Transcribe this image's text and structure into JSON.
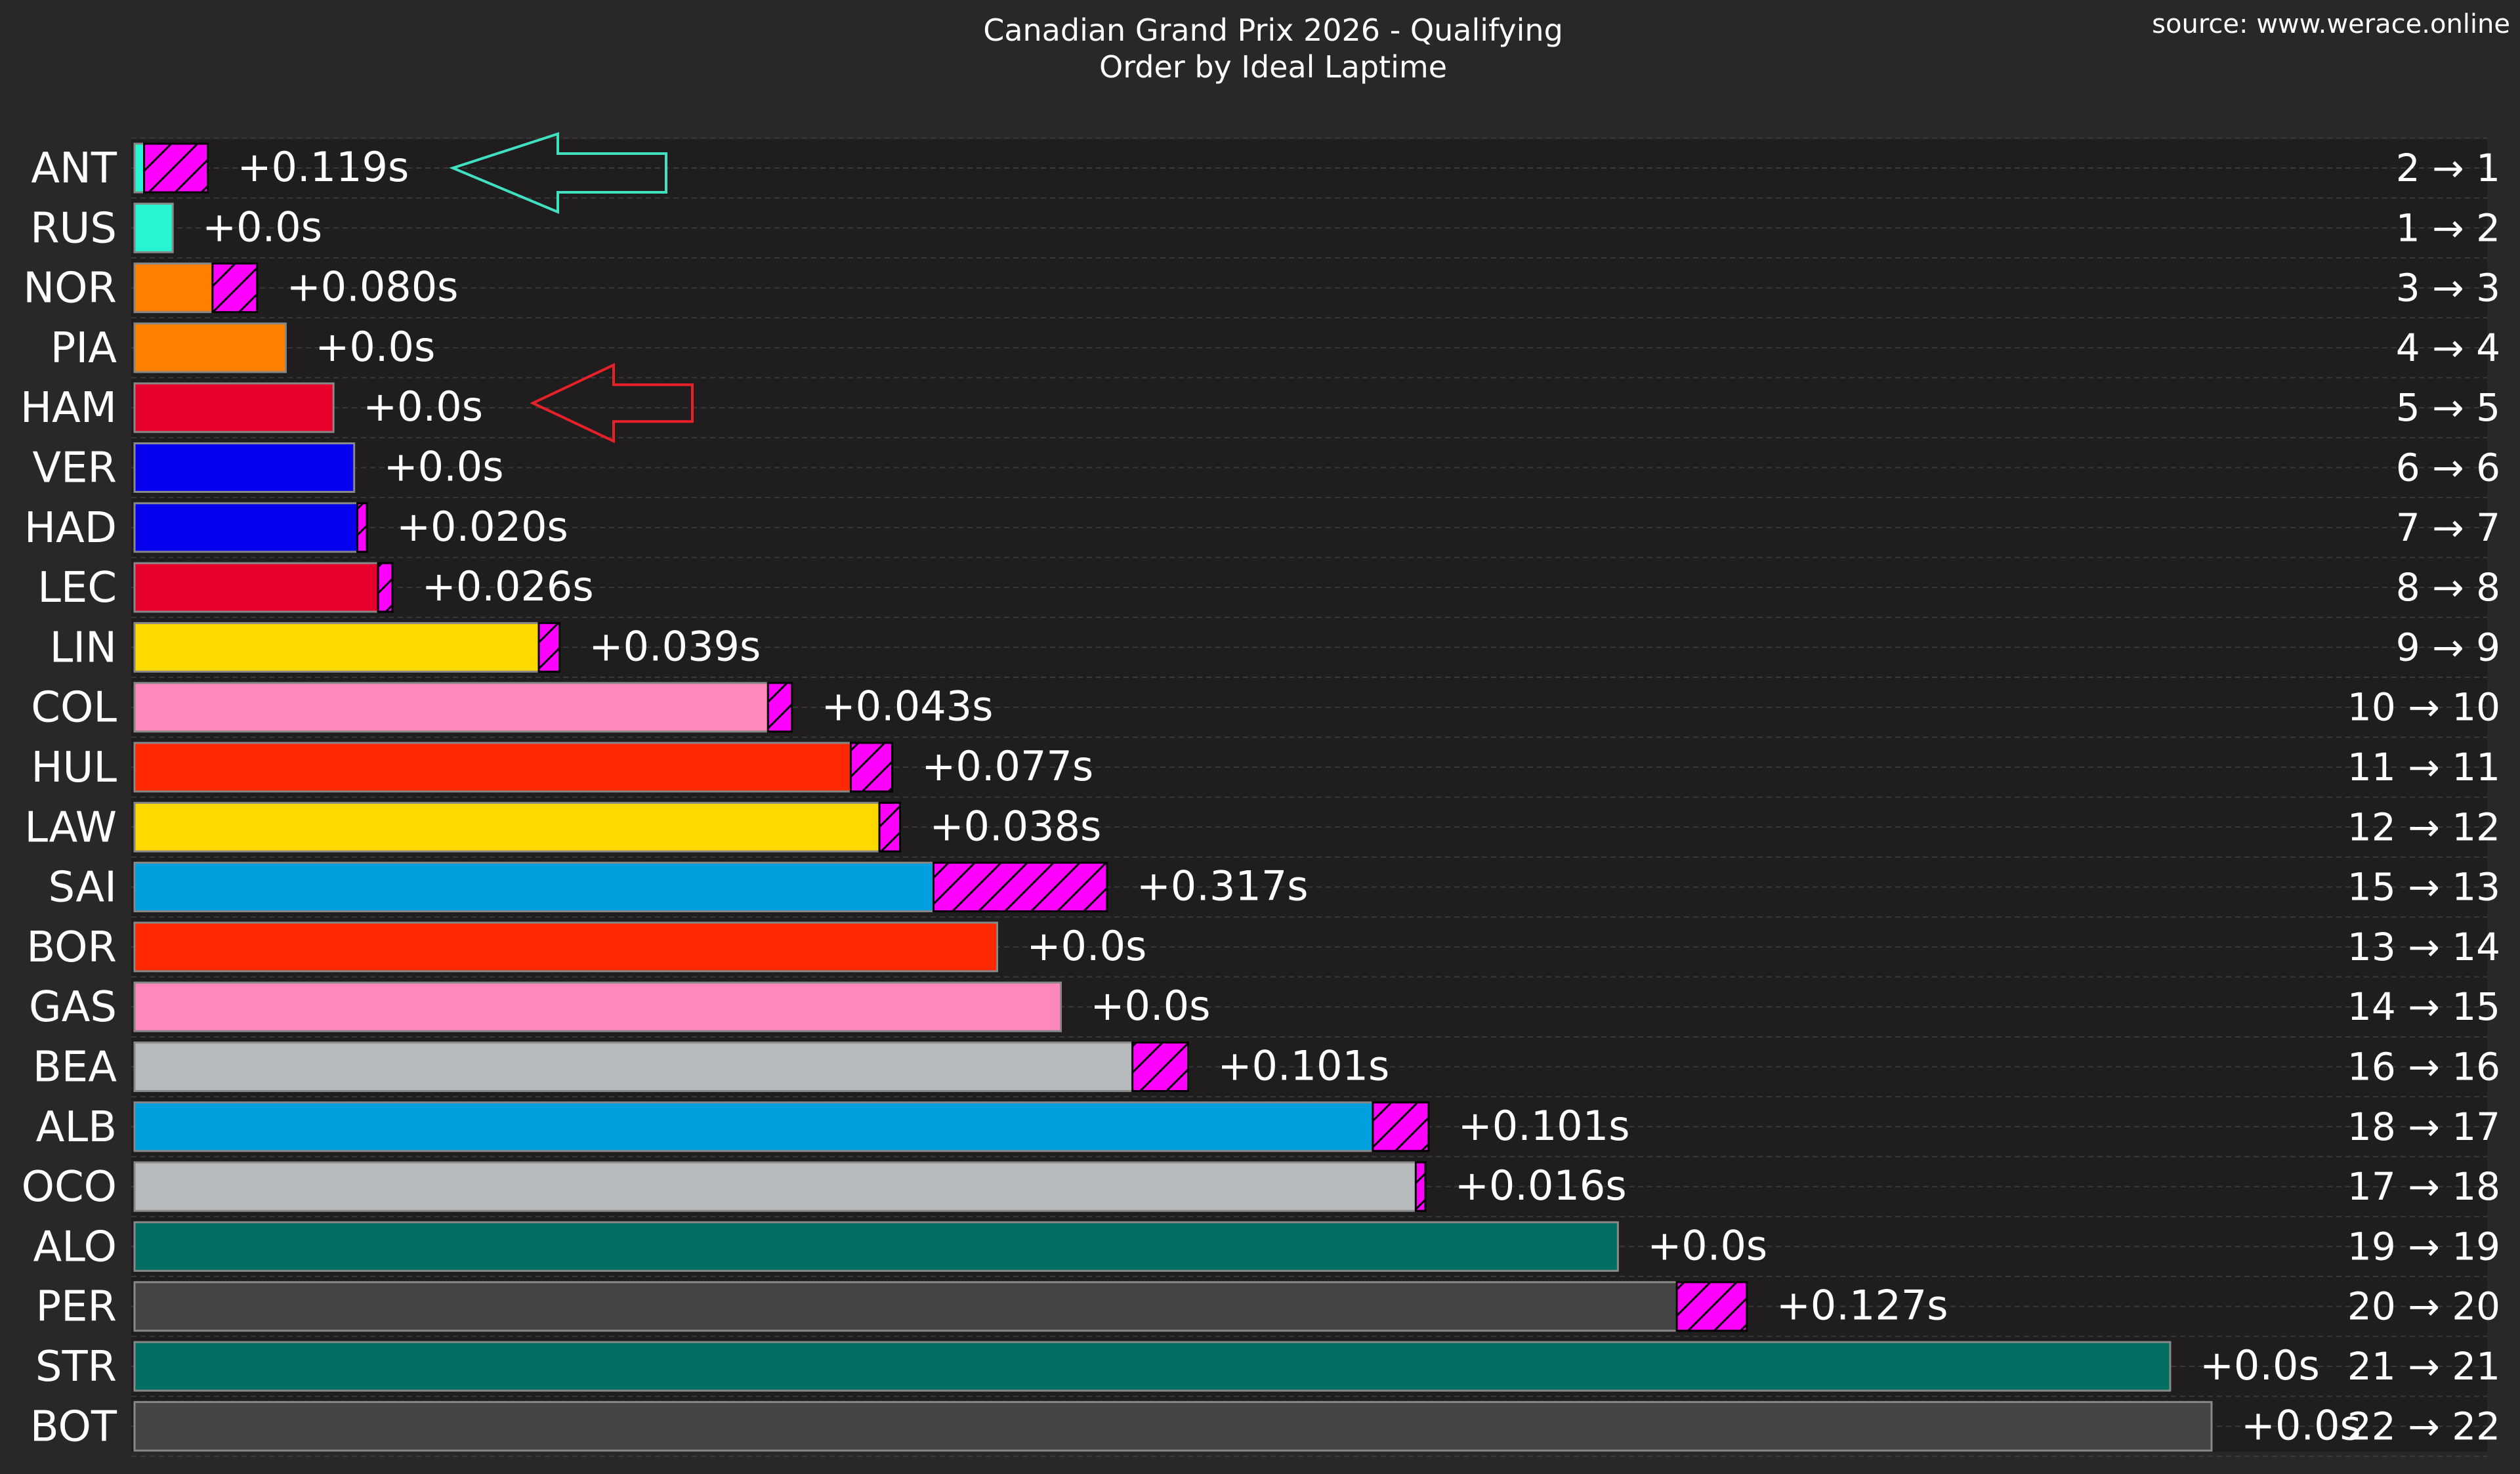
{
  "title": "Canadian Grand Prix 2026 - Qualifying",
  "subtitle": "Order by Ideal Laptime",
  "source": "source: www.werace.online",
  "colors": {
    "background": "#292727",
    "plot_background": "#1f1d1d",
    "gap_fill": "#ff00ff",
    "ant_arrow": "#40e0c0",
    "ham_arrow": "#e8202a"
  },
  "chart_data": {
    "type": "bar",
    "orientation": "horizontal",
    "title": "Canadian Grand Prix 2026 - Qualifying",
    "subtitle": "Order by Ideal Laptime",
    "xlim": [
      0,
      1.305
    ],
    "grid": true,
    "series": [
      {
        "name": "",
        "description_role": "ideal-lap-delta"
      },
      {
        "name": "",
        "description_role": "gap-to-actual"
      }
    ],
    "categories": [
      "ANT",
      "RUS",
      "NOR",
      "PIA",
      "HAM",
      "VER",
      "HAD",
      "LEC",
      "LIN",
      "COL",
      "HUL",
      "LAW",
      "SAI",
      "BOR",
      "GAS",
      "BEA",
      "ALB",
      "OCO",
      "ALO",
      "PER",
      "STR",
      "BOT"
    ],
    "base_values": [
      0.006,
      0.024,
      0.049,
      0.095,
      0.125,
      0.138,
      0.14,
      0.153,
      0.254,
      0.398,
      0.45,
      0.468,
      0.502,
      0.542,
      0.582,
      0.627,
      0.778,
      0.805,
      0.932,
      0.969,
      1.279,
      1.305
    ],
    "gap_labels": [
      "+0.119s",
      "+0.0s",
      "+0.080s",
      "+0.0s",
      "+0.0s",
      "+0.0s",
      "+0.020s",
      "+0.026s",
      "+0.039s",
      "+0.043s",
      "+0.077s",
      "+0.038s",
      "+0.317s",
      "+0.0s",
      "+0.0s",
      "+0.101s",
      "+0.101s",
      "+0.016s",
      "+0.0s",
      "+0.127s",
      "+0.0s",
      "+0.0s"
    ],
    "gap_values": [
      0.04,
      0.0,
      0.028,
      0.0,
      0.0,
      0.0,
      0.006,
      0.009,
      0.013,
      0.015,
      0.026,
      0.013,
      0.109,
      0.0,
      0.0,
      0.035,
      0.035,
      0.006,
      0.0,
      0.044,
      0.0,
      0.0
    ],
    "bar_colors": [
      "#27f4d2",
      "#27f4d2",
      "#ff8000",
      "#ff8000",
      "#e8002d",
      "#0600ef",
      "#0600ef",
      "#e8002d",
      "#ffd800",
      "#ff87bc",
      "#ff2800",
      "#ffd800",
      "#00a0de",
      "#ff2800",
      "#ff87bc",
      "#b6babd",
      "#00a0de",
      "#b6babd",
      "#006f62",
      "#444444",
      "#006f62",
      "#444444"
    ],
    "position_labels": [
      "2 → 1",
      "1 → 2",
      "3 → 3",
      "4 → 4",
      "5 → 5",
      "6 → 6",
      "7 → 7",
      "8 → 8",
      "9 → 9",
      "10 → 10",
      "11 → 11",
      "12 → 12",
      "15 → 13",
      "13 → 14",
      "14 → 15",
      "16 → 16",
      "18 → 17",
      "17 → 18",
      "19 → 19",
      "20 → 20",
      "21 → 21",
      "22 → 22"
    ],
    "annotations": [
      {
        "type": "arrow",
        "row": "ANT",
        "color": "#40e0c0"
      },
      {
        "type": "arrow",
        "row": "HAM",
        "color": "#e8202a"
      }
    ]
  }
}
